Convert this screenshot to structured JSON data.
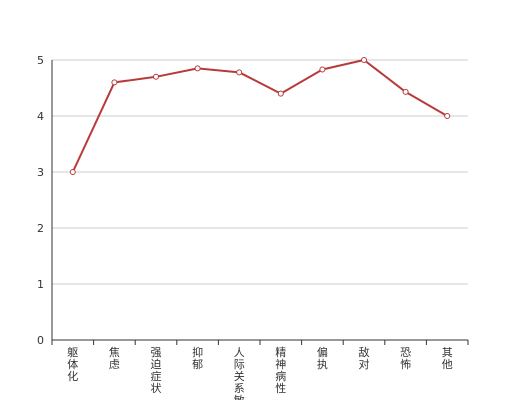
{
  "chart_data": {
    "type": "line",
    "categories": [
      "躯体化",
      "焦虑",
      "强迫症状",
      "抑郁",
      "人际关系敏感",
      "精神病性",
      "偏执",
      "敌对",
      "恐怖",
      "其他"
    ],
    "series": [
      {
        "values": [
          3.0,
          4.6,
          4.7,
          4.85,
          4.78,
          4.4,
          4.83,
          5.0,
          4.43,
          4.0
        ]
      }
    ],
    "ylim": [
      0,
      5
    ],
    "yticks": [
      0,
      1,
      2,
      3,
      4,
      5
    ],
    "grid": true,
    "colors": {
      "line": "#b83a3a",
      "marker_fill": "#ffffff",
      "grid": "#cccccc",
      "axis": "#333333",
      "text": "#333333"
    }
  }
}
